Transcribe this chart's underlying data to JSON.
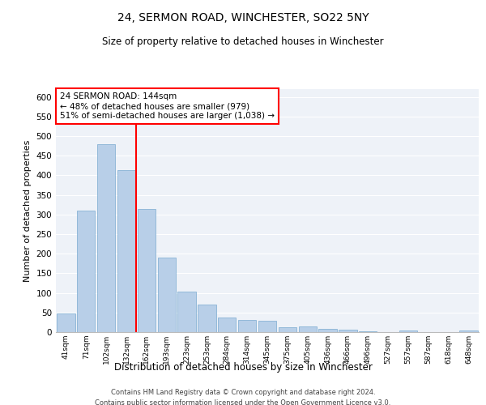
{
  "title": "24, SERMON ROAD, WINCHESTER, SO22 5NY",
  "subtitle": "Size of property relative to detached houses in Winchester",
  "xlabel": "Distribution of detached houses by size in Winchester",
  "ylabel": "Number of detached properties",
  "bar_color": "#b8cfe8",
  "bar_edge_color": "#7aaad0",
  "background_color": "#eef2f8",
  "vline_color": "red",
  "annotation_text": "24 SERMON ROAD: 144sqm\n← 48% of detached houses are smaller (979)\n51% of semi-detached houses are larger (1,038) →",
  "categories": [
    "41sqm",
    "71sqm",
    "102sqm",
    "132sqm",
    "162sqm",
    "193sqm",
    "223sqm",
    "253sqm",
    "284sqm",
    "314sqm",
    "345sqm",
    "375sqm",
    "405sqm",
    "436sqm",
    "466sqm",
    "496sqm",
    "527sqm",
    "557sqm",
    "587sqm",
    "618sqm",
    "648sqm"
  ],
  "values": [
    47,
    311,
    480,
    413,
    315,
    190,
    103,
    70,
    38,
    32,
    29,
    12,
    14,
    9,
    6,
    3,
    0,
    5,
    0,
    0,
    4
  ],
  "ylim": [
    0,
    620
  ],
  "yticks": [
    0,
    50,
    100,
    150,
    200,
    250,
    300,
    350,
    400,
    450,
    500,
    550,
    600
  ],
  "footer_line1": "Contains HM Land Registry data © Crown copyright and database right 2024.",
  "footer_line2": "Contains public sector information licensed under the Open Government Licence v3.0."
}
